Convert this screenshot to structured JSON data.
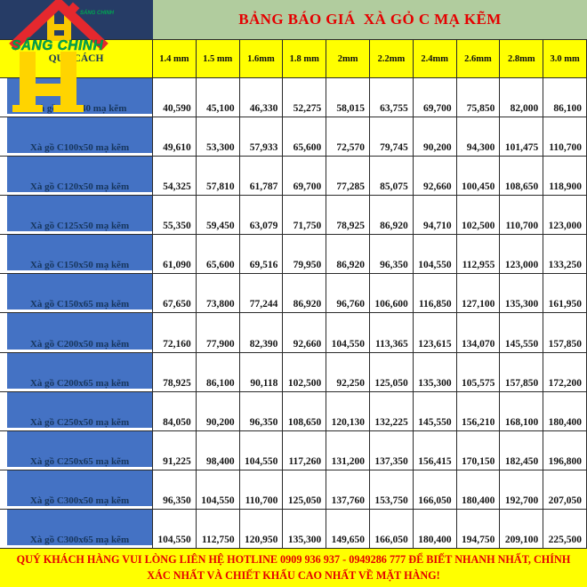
{
  "title": "BẢNG BÁO GIÁ  XÀ GỎ C MẠ KẼM",
  "logo": {
    "brand": "SÁNG CHINH",
    "brand_small": "SÁNG CHINH",
    "monogram": "H"
  },
  "table": {
    "spec_header": "QUY CÁCH",
    "thickness_headers": [
      "1.4 mm",
      "1.5 mm",
      "1.6mm",
      "1.8 mm",
      "2mm",
      "2.2mm",
      "2.4mm",
      "2.6mm",
      "2.8mm",
      "3.0 mm"
    ],
    "rows": [
      {
        "label": "Xà gồ C80x40 mạ kẽm",
        "values": [
          "40,590",
          "45,100",
          "46,330",
          "52,275",
          "58,015",
          "63,755",
          "69,700",
          "75,850",
          "82,000",
          "86,100"
        ]
      },
      {
        "label": "Xà gồ C100x50 mạ kẽm",
        "values": [
          "49,610",
          "53,300",
          "57,933",
          "65,600",
          "72,570",
          "79,745",
          "90,200",
          "94,300",
          "101,475",
          "110,700"
        ]
      },
      {
        "label": "Xà gồ C120x50 mạ kẽm",
        "values": [
          "54,325",
          "57,810",
          "61,787",
          "69,700",
          "77,285",
          "85,075",
          "92,660",
          "100,450",
          "108,650",
          "118,900"
        ]
      },
      {
        "label": "Xà gồ C125x50 mạ kẽm",
        "values": [
          "55,350",
          "59,450",
          "63,079",
          "71,750",
          "78,925",
          "86,920",
          "94,710",
          "102,500",
          "110,700",
          "123,000"
        ]
      },
      {
        "label": "Xà gồ C150x50 mạ kẽm",
        "values": [
          "61,090",
          "65,600",
          "69,516",
          "79,950",
          "86,920",
          "96,350",
          "104,550",
          "112,955",
          "123,000",
          "133,250"
        ]
      },
      {
        "label": "Xà gồ C150x65 mạ kẽm",
        "values": [
          "67,650",
          "73,800",
          "77,244",
          "86,920",
          "96,760",
          "106,600",
          "116,850",
          "127,100",
          "135,300",
          "161,950"
        ]
      },
      {
        "label": "Xà gồ C200x50 mạ kẽm",
        "values": [
          "72,160",
          "77,900",
          "82,390",
          "92,660",
          "104,550",
          "113,365",
          "123,615",
          "134,070",
          "145,550",
          "157,850"
        ]
      },
      {
        "label": "Xà gồ C200x65 mạ kẽm",
        "values": [
          "78,925",
          "86,100",
          "90,118",
          "102,500",
          "92,250",
          "125,050",
          "135,300",
          "105,575",
          "157,850",
          "172,200"
        ]
      },
      {
        "label": "Xà gồ C250x50 mạ kẽm",
        "values": [
          "84,050",
          "90,200",
          "96,350",
          "108,650",
          "120,130",
          "132,225",
          "145,550",
          "156,210",
          "168,100",
          "180,400"
        ]
      },
      {
        "label": "Xà gồ C250x65 mạ kẽm",
        "values": [
          "91,225",
          "98,400",
          "104,550",
          "117,260",
          "131,200",
          "137,350",
          "156,415",
          "170,150",
          "182,450",
          "196,800"
        ]
      },
      {
        "label": "Xà gồ C300x50 mạ kẽm",
        "values": [
          "96,350",
          "104,550",
          "110,700",
          "125,050",
          "137,760",
          "153,750",
          "166,050",
          "180,400",
          "192,700",
          "207,050"
        ]
      },
      {
        "label": "Xà gồ C300x65 mạ kẽm",
        "values": [
          "104,550",
          "112,750",
          "120,950",
          "135,300",
          "149,650",
          "166,050",
          "180,400",
          "194,750",
          "209,100",
          "225,500"
        ]
      }
    ]
  },
  "footer": {
    "text": "QUÝ KHÁCH HÀNG VUI LÒNG LIÊN HỆ HOTLINE 0909 936 937 - 0949286 777 ĐỂ BIẾT NHANH NHẤT, CHÍNH XÁC NHẤT VÀ CHIẾT KHẤU CAO NHẤT VỀ MẶT HÀNG!"
  },
  "colors": {
    "title_band_bg": "#b1cc9e",
    "title_text": "#e50000",
    "header_bg": "#ffff00",
    "label_col_bg": "#4472c4",
    "label_text": "#17365d",
    "navy_block": "#263c66",
    "logo_roof_red": "#e5282e",
    "logo_green": "#00a651",
    "logo_yellow": "#ffd400",
    "footer_bg": "#ffff00",
    "footer_text": "#e50000",
    "gridline": "#2a2a2a"
  }
}
